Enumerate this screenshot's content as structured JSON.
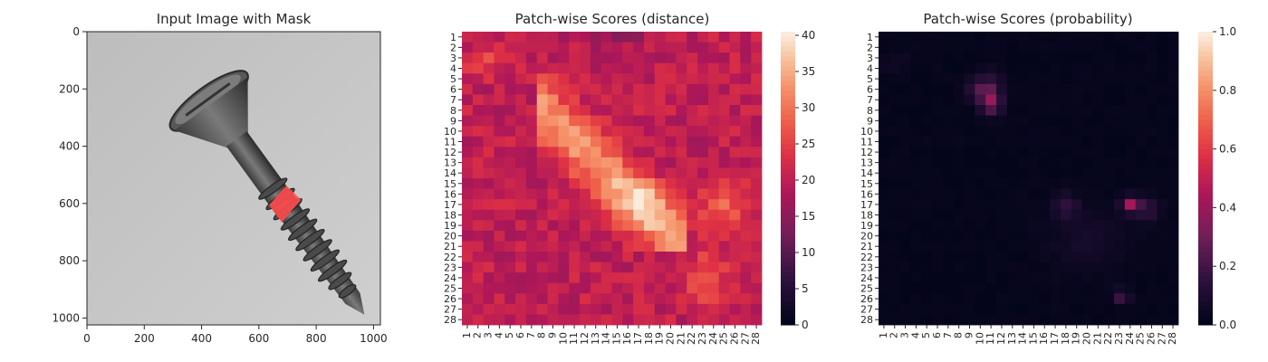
{
  "chart_data": [
    {
      "type": "image",
      "title": "Input Image with Mask",
      "x_ticks": [
        "0",
        "200",
        "400",
        "600",
        "800",
        "1000"
      ],
      "y_ticks": [
        "0",
        "200",
        "400",
        "600",
        "800",
        "1000"
      ],
      "xlim": [
        0,
        1024
      ],
      "ylim": [
        1024,
        0
      ],
      "image_description": "grayscale photo of a screw with a red mask over a damaged thread region",
      "mask_color": "#ff4b4b"
    },
    {
      "type": "heatmap",
      "title": "Patch-wise Scores (distance)",
      "x_ticks": [
        "1",
        "2",
        "3",
        "4",
        "5",
        "6",
        "7",
        "8",
        "9",
        "10",
        "11",
        "12",
        "13",
        "14",
        "15",
        "16",
        "17",
        "18",
        "19",
        "20",
        "21",
        "22",
        "23",
        "24",
        "25",
        "26",
        "27",
        "28"
      ],
      "y_ticks": [
        "1",
        "2",
        "3",
        "4",
        "5",
        "6",
        "7",
        "8",
        "9",
        "10",
        "11",
        "12",
        "13",
        "14",
        "15",
        "16",
        "17",
        "18",
        "19",
        "20",
        "21",
        "22",
        "23",
        "24",
        "25",
        "26",
        "27",
        "28"
      ],
      "colorbar_ticks": [
        "0",
        "5",
        "10",
        "15",
        "20",
        "25",
        "30",
        "35",
        "40"
      ],
      "vmin": 0,
      "vmax": 40.5,
      "colormap": "rocket",
      "grid": false
    },
    {
      "type": "heatmap",
      "title": "Patch-wise Scores (probability)",
      "x_ticks": [
        "1",
        "2",
        "3",
        "4",
        "5",
        "6",
        "7",
        "8",
        "9",
        "10",
        "11",
        "12",
        "13",
        "14",
        "15",
        "16",
        "17",
        "18",
        "19",
        "20",
        "21",
        "22",
        "23",
        "24",
        "25",
        "26",
        "27",
        "28"
      ],
      "y_ticks": [
        "1",
        "2",
        "3",
        "4",
        "5",
        "6",
        "7",
        "8",
        "9",
        "10",
        "11",
        "12",
        "13",
        "14",
        "15",
        "16",
        "17",
        "18",
        "19",
        "20",
        "21",
        "22",
        "23",
        "24",
        "25",
        "26",
        "27",
        "28"
      ],
      "colorbar_ticks": [
        "0.0",
        "0.2",
        "0.4",
        "0.6",
        "0.8",
        "1.0"
      ],
      "vmin": 0,
      "vmax": 1,
      "colormap": "rocket",
      "grid": false
    }
  ]
}
